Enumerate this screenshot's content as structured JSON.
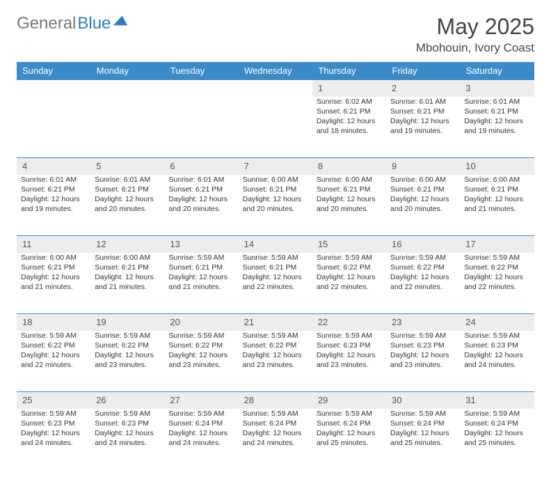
{
  "logo": {
    "part1": "General",
    "part2": "Blue"
  },
  "title": "May 2025",
  "location": "Mbohouin, Ivory Coast",
  "dayHeaders": [
    "Sunday",
    "Monday",
    "Tuesday",
    "Wednesday",
    "Thursday",
    "Friday",
    "Saturday"
  ],
  "colors": {
    "header_bg": "#3b8bc9",
    "header_text": "#ffffff",
    "daynum_bg": "#ededed",
    "border": "#3b8bc9",
    "logo_blue": "#2f7bbf",
    "logo_gray": "#777777",
    "text": "#333333"
  },
  "typography": {
    "month_title_size": 32,
    "location_size": 17,
    "header_size": 13,
    "daynum_size": 13,
    "detail_size": 10.5
  },
  "weeks": [
    [
      null,
      null,
      null,
      null,
      {
        "n": "1",
        "sr": "6:02 AM",
        "ss": "6:21 PM",
        "dl": "12 hours and 18 minutes."
      },
      {
        "n": "2",
        "sr": "6:01 AM",
        "ss": "6:21 PM",
        "dl": "12 hours and 19 minutes."
      },
      {
        "n": "3",
        "sr": "6:01 AM",
        "ss": "6:21 PM",
        "dl": "12 hours and 19 minutes."
      }
    ],
    [
      {
        "n": "4",
        "sr": "6:01 AM",
        "ss": "6:21 PM",
        "dl": "12 hours and 19 minutes."
      },
      {
        "n": "5",
        "sr": "6:01 AM",
        "ss": "6:21 PM",
        "dl": "12 hours and 20 minutes."
      },
      {
        "n": "6",
        "sr": "6:01 AM",
        "ss": "6:21 PM",
        "dl": "12 hours and 20 minutes."
      },
      {
        "n": "7",
        "sr": "6:00 AM",
        "ss": "6:21 PM",
        "dl": "12 hours and 20 minutes."
      },
      {
        "n": "8",
        "sr": "6:00 AM",
        "ss": "6:21 PM",
        "dl": "12 hours and 20 minutes."
      },
      {
        "n": "9",
        "sr": "6:00 AM",
        "ss": "6:21 PM",
        "dl": "12 hours and 20 minutes."
      },
      {
        "n": "10",
        "sr": "6:00 AM",
        "ss": "6:21 PM",
        "dl": "12 hours and 21 minutes."
      }
    ],
    [
      {
        "n": "11",
        "sr": "6:00 AM",
        "ss": "6:21 PM",
        "dl": "12 hours and 21 minutes."
      },
      {
        "n": "12",
        "sr": "6:00 AM",
        "ss": "6:21 PM",
        "dl": "12 hours and 21 minutes."
      },
      {
        "n": "13",
        "sr": "5:59 AM",
        "ss": "6:21 PM",
        "dl": "12 hours and 21 minutes."
      },
      {
        "n": "14",
        "sr": "5:59 AM",
        "ss": "6:21 PM",
        "dl": "12 hours and 22 minutes."
      },
      {
        "n": "15",
        "sr": "5:59 AM",
        "ss": "6:22 PM",
        "dl": "12 hours and 22 minutes."
      },
      {
        "n": "16",
        "sr": "5:59 AM",
        "ss": "6:22 PM",
        "dl": "12 hours and 22 minutes."
      },
      {
        "n": "17",
        "sr": "5:59 AM",
        "ss": "6:22 PM",
        "dl": "12 hours and 22 minutes."
      }
    ],
    [
      {
        "n": "18",
        "sr": "5:59 AM",
        "ss": "6:22 PM",
        "dl": "12 hours and 22 minutes."
      },
      {
        "n": "19",
        "sr": "5:59 AM",
        "ss": "6:22 PM",
        "dl": "12 hours and 23 minutes."
      },
      {
        "n": "20",
        "sr": "5:59 AM",
        "ss": "6:22 PM",
        "dl": "12 hours and 23 minutes."
      },
      {
        "n": "21",
        "sr": "5:59 AM",
        "ss": "6:22 PM",
        "dl": "12 hours and 23 minutes."
      },
      {
        "n": "22",
        "sr": "5:59 AM",
        "ss": "6:23 PM",
        "dl": "12 hours and 23 minutes."
      },
      {
        "n": "23",
        "sr": "5:59 AM",
        "ss": "6:23 PM",
        "dl": "12 hours and 23 minutes."
      },
      {
        "n": "24",
        "sr": "5:59 AM",
        "ss": "6:23 PM",
        "dl": "12 hours and 24 minutes."
      }
    ],
    [
      {
        "n": "25",
        "sr": "5:59 AM",
        "ss": "6:23 PM",
        "dl": "12 hours and 24 minutes."
      },
      {
        "n": "26",
        "sr": "5:59 AM",
        "ss": "6:23 PM",
        "dl": "12 hours and 24 minutes."
      },
      {
        "n": "27",
        "sr": "5:59 AM",
        "ss": "6:24 PM",
        "dl": "12 hours and 24 minutes."
      },
      {
        "n": "28",
        "sr": "5:59 AM",
        "ss": "6:24 PM",
        "dl": "12 hours and 24 minutes."
      },
      {
        "n": "29",
        "sr": "5:59 AM",
        "ss": "6:24 PM",
        "dl": "12 hours and 25 minutes."
      },
      {
        "n": "30",
        "sr": "5:59 AM",
        "ss": "6:24 PM",
        "dl": "12 hours and 25 minutes."
      },
      {
        "n": "31",
        "sr": "5:59 AM",
        "ss": "6:24 PM",
        "dl": "12 hours and 25 minutes."
      }
    ]
  ],
  "labels": {
    "sunrise": "Sunrise:",
    "sunset": "Sunset:",
    "daylight": "Daylight:"
  }
}
